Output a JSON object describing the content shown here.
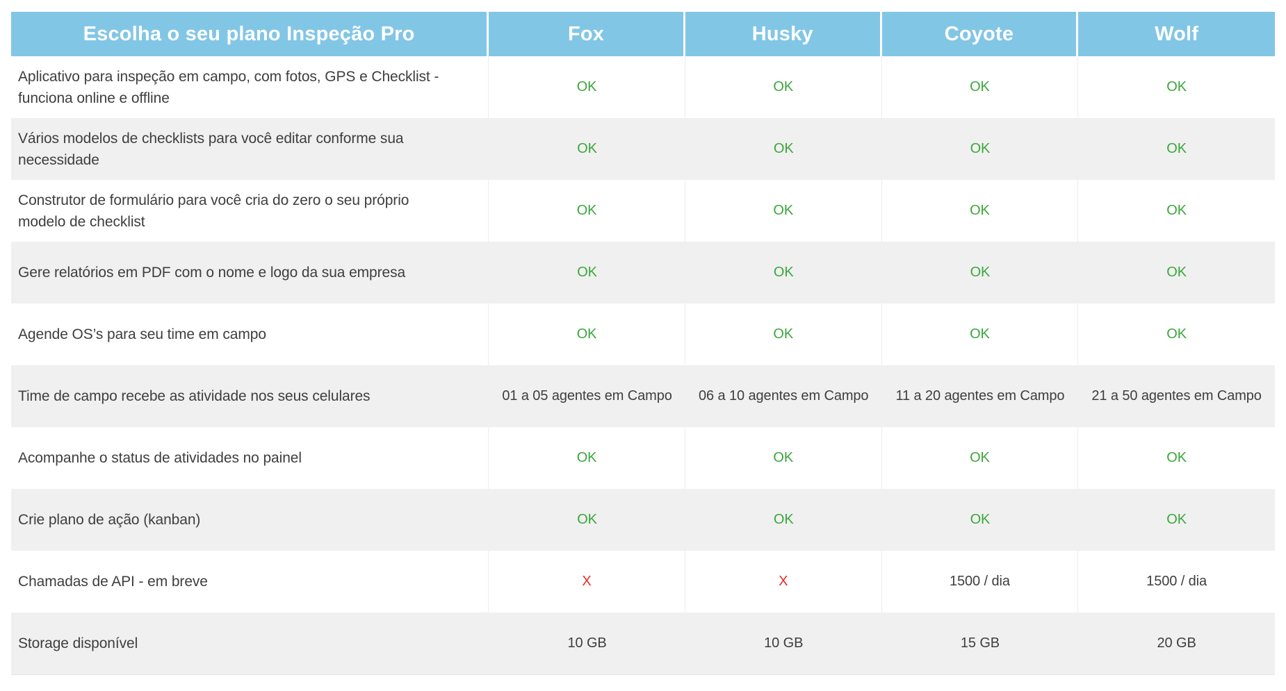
{
  "colors": {
    "header_bg": "#82C6E6",
    "header_text": "#FFFFFF",
    "row_alt_bg": "#F0F0F0",
    "text": "#3E3E3E",
    "ok_green": "#3BA63C",
    "x_red": "#EA2A26"
  },
  "table": {
    "header": {
      "title": "Escolha o seu plano Inspeção Pro",
      "plans": [
        "Fox",
        "Husky",
        "Coyote",
        "Wolf"
      ]
    },
    "rows": [
      {
        "feature": "Aplicativo para inspeção em campo, com fotos, GPS e Checklist - funciona online e offline",
        "cells": [
          {
            "text": "OK",
            "type": "ok"
          },
          {
            "text": "OK",
            "type": "ok"
          },
          {
            "text": "OK",
            "type": "ok"
          },
          {
            "text": "OK",
            "type": "ok"
          }
        ]
      },
      {
        "feature": "Vários modelos de checklists para você editar conforme sua necessidade",
        "cells": [
          {
            "text": "OK",
            "type": "ok"
          },
          {
            "text": "OK",
            "type": "ok"
          },
          {
            "text": "OK",
            "type": "ok"
          },
          {
            "text": "OK",
            "type": "ok"
          }
        ]
      },
      {
        "feature": "Construtor de formulário para você cria do zero o seu próprio modelo de checklist",
        "cells": [
          {
            "text": "OK",
            "type": "ok"
          },
          {
            "text": "OK",
            "type": "ok"
          },
          {
            "text": "OK",
            "type": "ok"
          },
          {
            "text": "OK",
            "type": "ok"
          }
        ]
      },
      {
        "feature": "Gere relatórios em PDF com o nome e logo da sua empresa",
        "cells": [
          {
            "text": "OK",
            "type": "ok"
          },
          {
            "text": "OK",
            "type": "ok"
          },
          {
            "text": "OK",
            "type": "ok"
          },
          {
            "text": "OK",
            "type": "ok"
          }
        ]
      },
      {
        "feature": "Agende OS’s para seu time em campo",
        "cells": [
          {
            "text": "OK",
            "type": "ok"
          },
          {
            "text": "OK",
            "type": "ok"
          },
          {
            "text": "OK",
            "type": "ok"
          },
          {
            "text": "OK",
            "type": "ok"
          }
        ]
      },
      {
        "feature": "Time de campo recebe as atividade nos seus celulares",
        "cells": [
          {
            "text": "01 a 05 agentes em Campo",
            "type": "text"
          },
          {
            "text": "06 a 10 agentes em Campo",
            "type": "text"
          },
          {
            "text": "11 a 20 agentes em Campo",
            "type": "text"
          },
          {
            "text": "21 a 50 agentes em Campo",
            "type": "text"
          }
        ]
      },
      {
        "feature": "Acompanhe o status de atividades no painel",
        "cells": [
          {
            "text": "OK",
            "type": "ok"
          },
          {
            "text": "OK",
            "type": "ok"
          },
          {
            "text": "OK",
            "type": "ok"
          },
          {
            "text": "OK",
            "type": "ok"
          }
        ]
      },
      {
        "feature": "Crie plano de ação (kanban)",
        "cells": [
          {
            "text": "OK",
            "type": "ok"
          },
          {
            "text": "OK",
            "type": "ok"
          },
          {
            "text": "OK",
            "type": "ok"
          },
          {
            "text": "OK",
            "type": "ok"
          }
        ]
      },
      {
        "feature": "Chamadas de API - em breve",
        "cells": [
          {
            "text": "X",
            "type": "no"
          },
          {
            "text": "X",
            "type": "no"
          },
          {
            "text": "1500 / dia",
            "type": "text"
          },
          {
            "text": "1500 / dia",
            "type": "text"
          }
        ]
      },
      {
        "feature": "Storage disponível",
        "cells": [
          {
            "text": "10 GB",
            "type": "text"
          },
          {
            "text": "10 GB",
            "type": "text"
          },
          {
            "text": "15 GB",
            "type": "text"
          },
          {
            "text": "20 GB",
            "type": "text"
          }
        ]
      }
    ]
  }
}
